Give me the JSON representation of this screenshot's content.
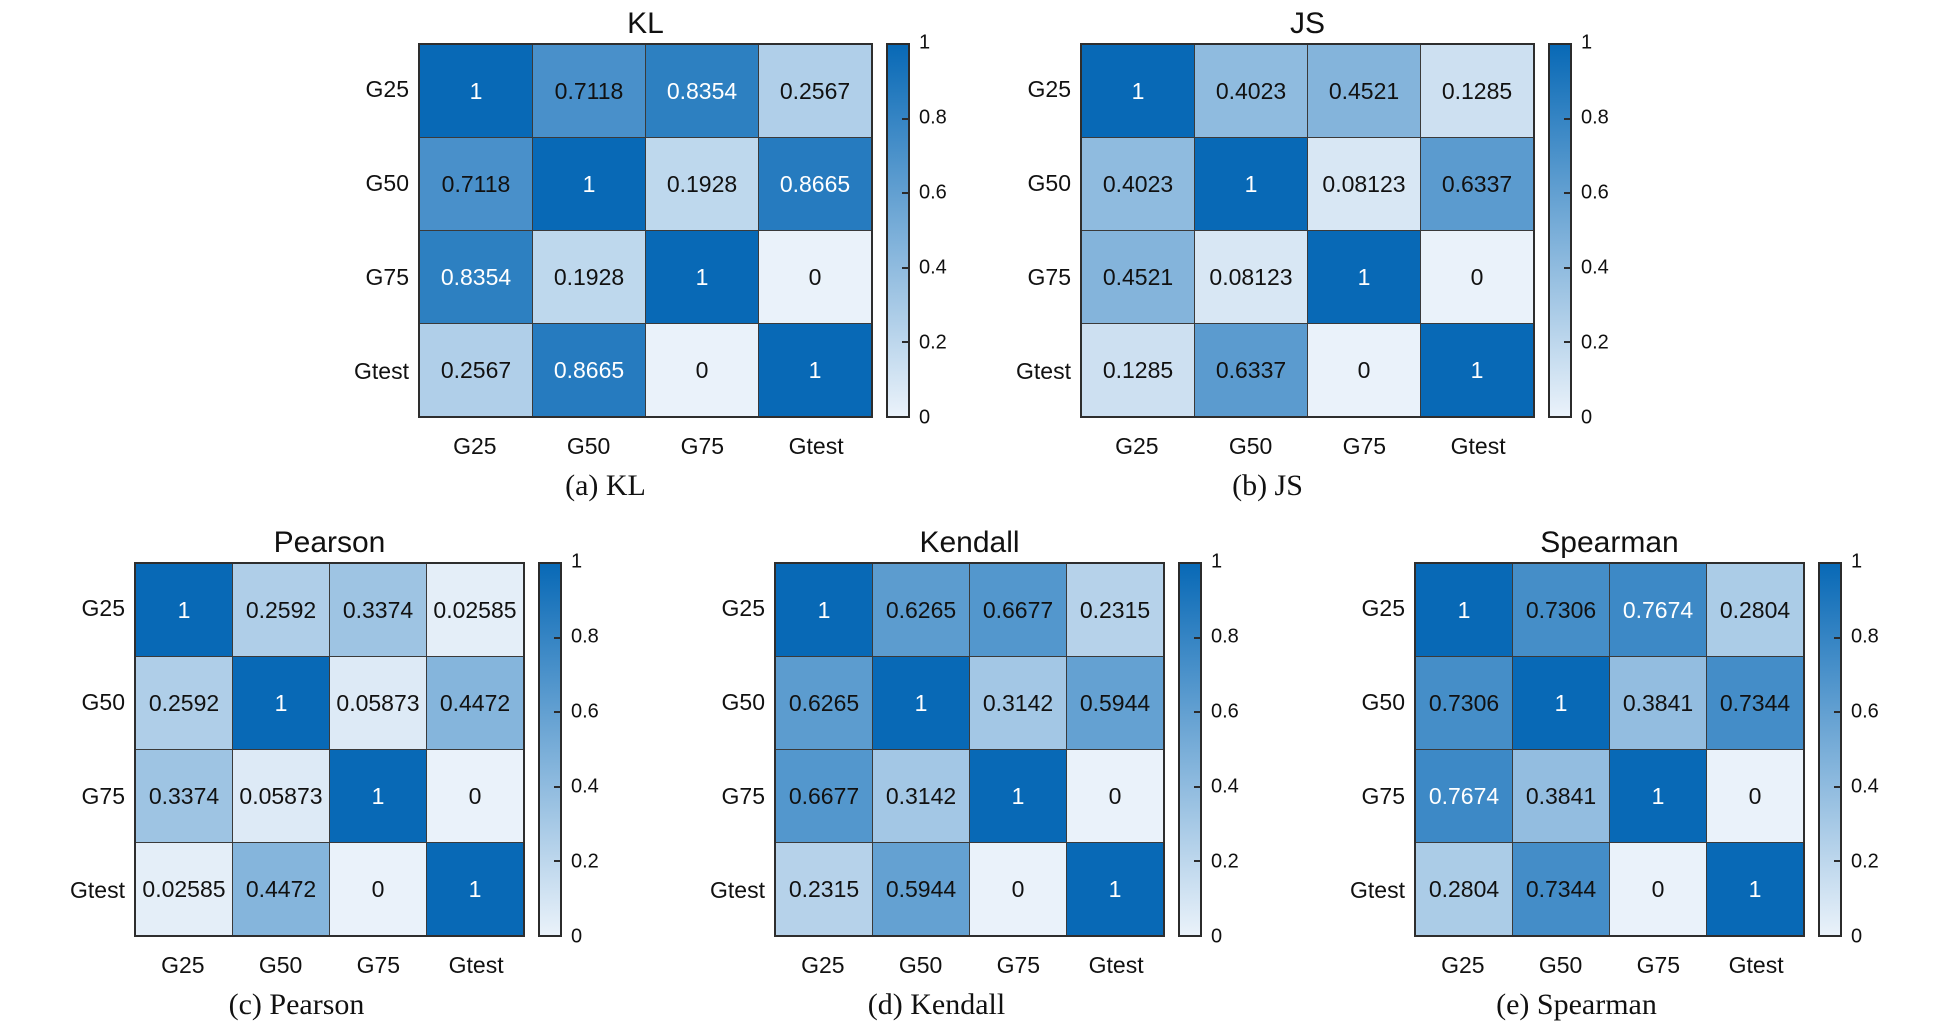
{
  "figure": {
    "background": "#ffffff"
  },
  "style": {
    "colormap_low": "#eaf2fa",
    "colormap_high": "#0869b6",
    "grid_line_color": "#3a3a3a",
    "cell_text_dark": "#111111",
    "cell_text_light": "#ffffff",
    "white_text_threshold": 0.75,
    "colorbar_border": "#2b2b2b"
  },
  "chart_data": [
    {
      "type": "heatmap",
      "title": "KL",
      "caption": "(a) KL",
      "row_placement": "top",
      "x_labels": [
        "G25",
        "G50",
        "G75",
        "Gtest"
      ],
      "y_labels": [
        "G25",
        "G50",
        "G75",
        "Gtest"
      ],
      "matrix": [
        [
          1,
          0.7118,
          0.8354,
          0.2567
        ],
        [
          0.7118,
          1,
          0.1928,
          0.8665
        ],
        [
          0.8354,
          0.1928,
          1,
          0
        ],
        [
          0.2567,
          0.8665,
          0,
          1
        ]
      ],
      "colorbar_range": [
        0,
        1
      ],
      "colorbar_ticks": [
        1,
        0.8,
        0.6,
        0.4,
        0.2,
        0
      ],
      "colormap": "blues",
      "legend": "none",
      "grid": "on"
    },
    {
      "type": "heatmap",
      "title": "JS",
      "caption": "(b) JS",
      "row_placement": "top",
      "x_labels": [
        "G25",
        "G50",
        "G75",
        "Gtest"
      ],
      "y_labels": [
        "G25",
        "G50",
        "G75",
        "Gtest"
      ],
      "matrix": [
        [
          1,
          0.4023,
          0.4521,
          0.1285
        ],
        [
          0.4023,
          1,
          0.08123,
          0.6337
        ],
        [
          0.4521,
          0.08123,
          1,
          0
        ],
        [
          0.1285,
          0.6337,
          0,
          1
        ]
      ],
      "colorbar_range": [
        0,
        1
      ],
      "colorbar_ticks": [
        1,
        0.8,
        0.6,
        0.4,
        0.2,
        0
      ],
      "colormap": "blues",
      "legend": "none",
      "grid": "on"
    },
    {
      "type": "heatmap",
      "title": "Pearson",
      "caption": "(c) Pearson",
      "row_placement": "bottom",
      "x_labels": [
        "G25",
        "G50",
        "G75",
        "Gtest"
      ],
      "y_labels": [
        "G25",
        "G50",
        "G75",
        "Gtest"
      ],
      "matrix": [
        [
          1,
          0.2592,
          0.3374,
          0.02585
        ],
        [
          0.2592,
          1,
          0.05873,
          0.4472
        ],
        [
          0.3374,
          0.05873,
          1,
          0
        ],
        [
          0.02585,
          0.4472,
          0,
          1
        ]
      ],
      "colorbar_range": [
        0,
        1
      ],
      "colorbar_ticks": [
        1,
        0.8,
        0.6,
        0.4,
        0.2,
        0
      ],
      "colormap": "blues",
      "legend": "none",
      "grid": "on"
    },
    {
      "type": "heatmap",
      "title": "Kendall",
      "caption": "(d) Kendall",
      "row_placement": "bottom",
      "x_labels": [
        "G25",
        "G50",
        "G75",
        "Gtest"
      ],
      "y_labels": [
        "G25",
        "G50",
        "G75",
        "Gtest"
      ],
      "matrix": [
        [
          1,
          0.6265,
          0.6677,
          0.2315
        ],
        [
          0.6265,
          1,
          0.3142,
          0.5944
        ],
        [
          0.6677,
          0.3142,
          1,
          0
        ],
        [
          0.2315,
          0.5944,
          0,
          1
        ]
      ],
      "colorbar_range": [
        0,
        1
      ],
      "colorbar_ticks": [
        1,
        0.8,
        0.6,
        0.4,
        0.2,
        0
      ],
      "colormap": "blues",
      "legend": "none",
      "grid": "on"
    },
    {
      "type": "heatmap",
      "title": "Spearman",
      "caption": "(e) Spearman",
      "row_placement": "bottom",
      "x_labels": [
        "G25",
        "G50",
        "G75",
        "Gtest"
      ],
      "y_labels": [
        "G25",
        "G50",
        "G75",
        "Gtest"
      ],
      "matrix": [
        [
          1,
          0.7306,
          0.7674,
          0.2804
        ],
        [
          0.7306,
          1,
          0.3841,
          0.7344
        ],
        [
          0.7674,
          0.3841,
          1,
          0
        ],
        [
          0.2804,
          0.7344,
          0,
          1
        ]
      ],
      "colorbar_range": [
        0,
        1
      ],
      "colorbar_ticks": [
        1,
        0.8,
        0.6,
        0.4,
        0.2,
        0
      ],
      "colormap": "blues",
      "legend": "none",
      "grid": "on"
    }
  ]
}
